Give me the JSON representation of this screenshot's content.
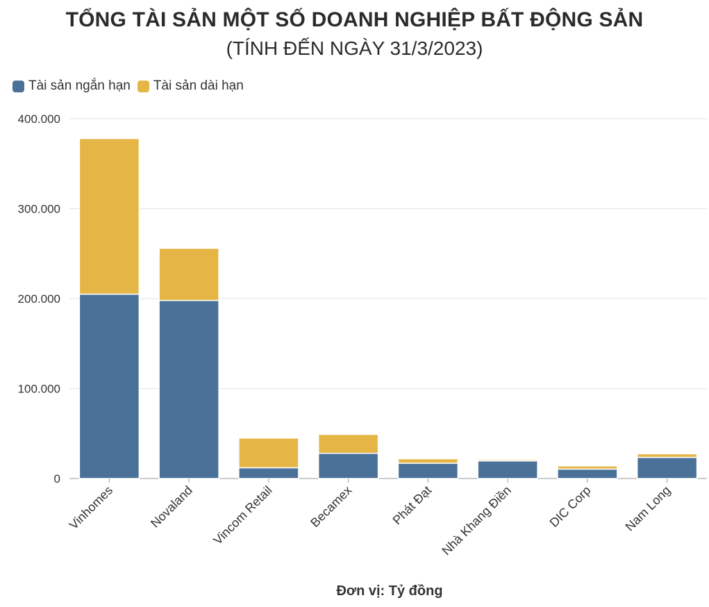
{
  "chart_data": {
    "type": "bar",
    "stacked": true,
    "title": "TỔNG TÀI SẢN MỘT SỐ DOANH NGHIỆP BẤT ĐỘNG SẢN",
    "subtitle": "(TÍNH ĐẾN NGÀY 31/3/2023)",
    "unit_note": "Đơn vị: Tỷ đồng",
    "categories": [
      "Vinhomes",
      "Novaland",
      "Vincom Retail",
      "Becamex",
      "Phát Đạt",
      "Nhà Khang Điền",
      "DIC Corp",
      "Nam Long"
    ],
    "series": [
      {
        "name": "Tài sản ngắn hạn",
        "color": "#4a7298",
        "values": [
          205000,
          198000,
          12000,
          28000,
          17000,
          19500,
          10500,
          23500
        ]
      },
      {
        "name": "Tài sản dài hạn",
        "color": "#e5b646",
        "values": [
          173000,
          58000,
          33000,
          21000,
          5000,
          1500,
          3500,
          4000
        ]
      }
    ],
    "ylim": [
      0,
      400000
    ],
    "yticks": [
      0,
      100000,
      200000,
      300000,
      400000
    ],
    "ytick_labels": [
      "0",
      "100.000",
      "200.000",
      "300.000",
      "400.000"
    ],
    "grid": true,
    "legend_position": "top-left"
  }
}
